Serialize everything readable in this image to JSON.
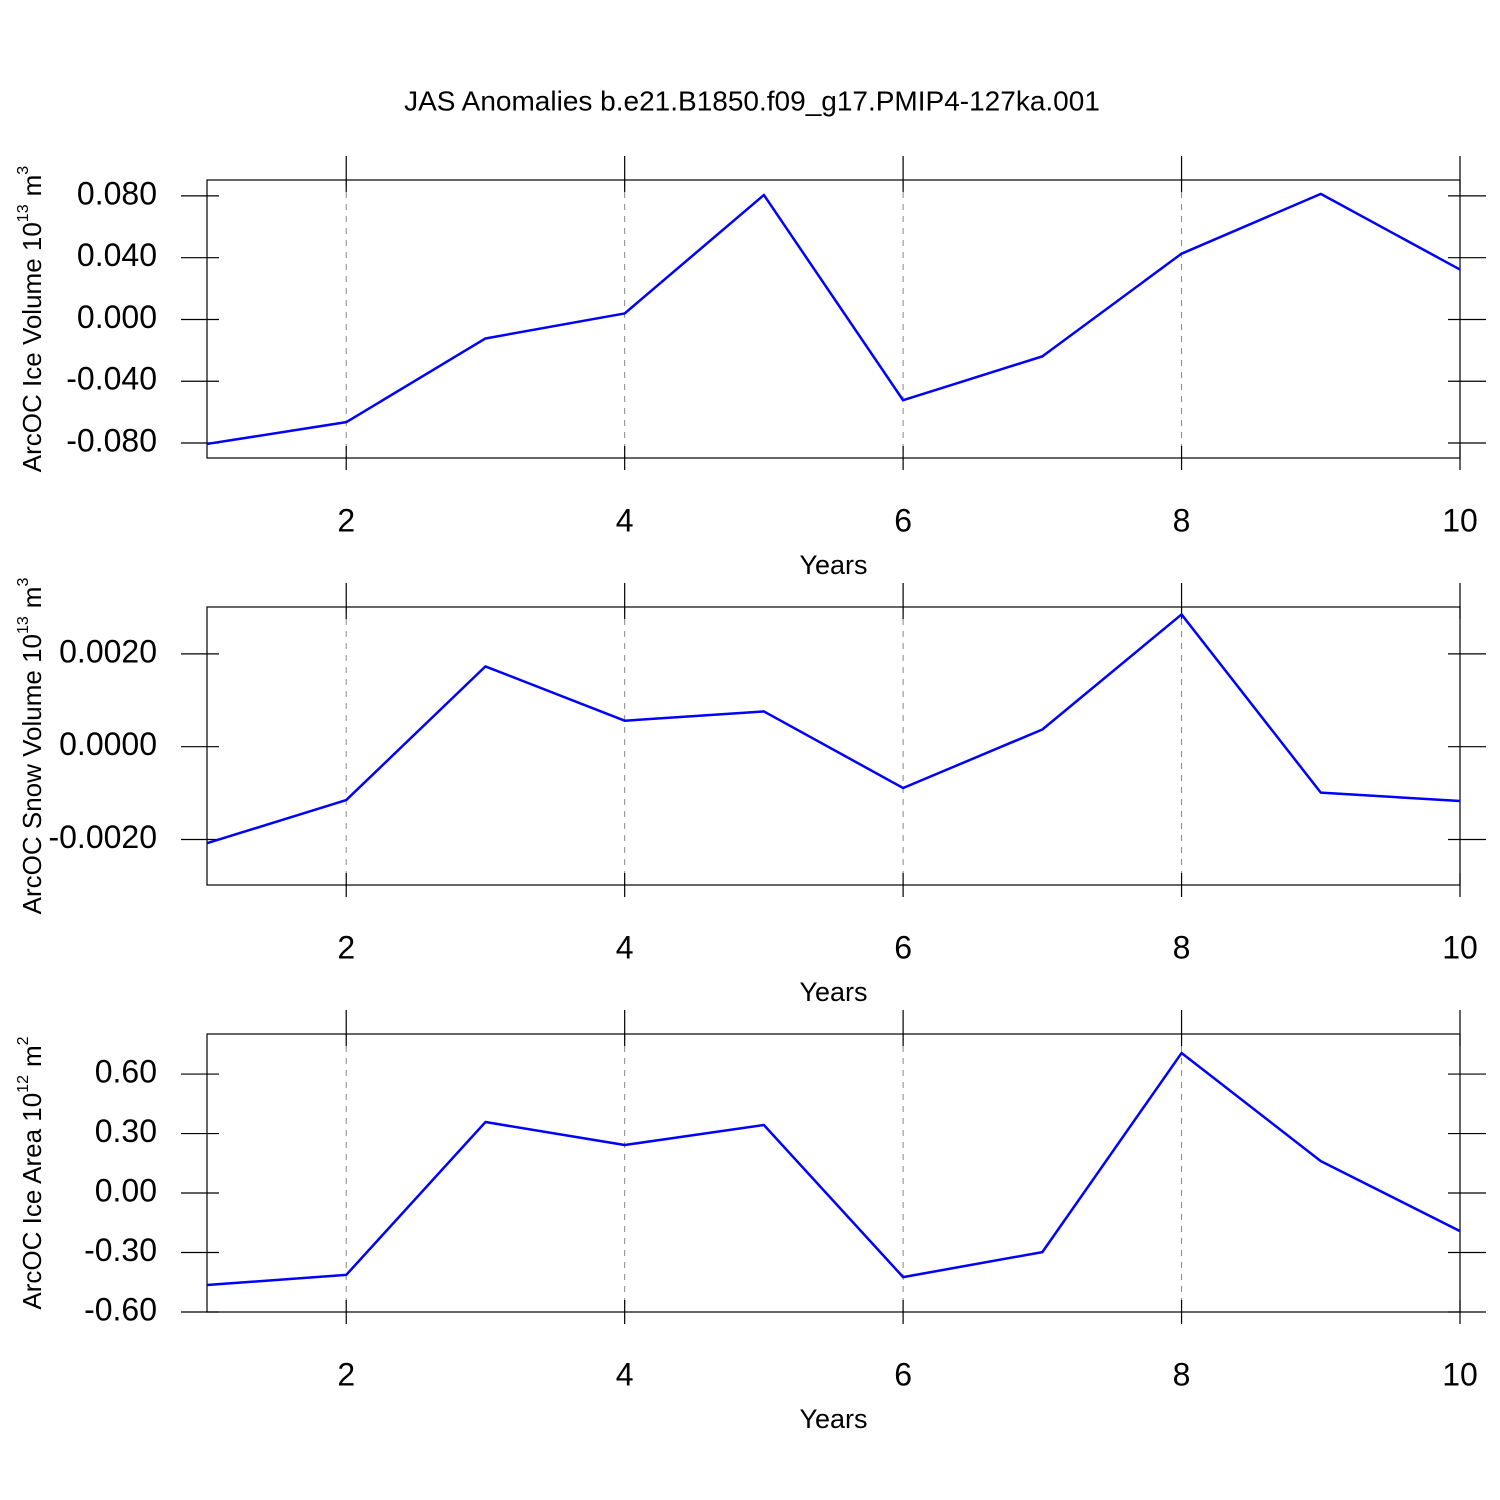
{
  "chart_data": [
    {
      "type": "line",
      "title": "JAS Anomalies b.e21.B1850.f09_g17.PMIP4-127ka.001",
      "x": [
        1,
        2,
        3,
        4,
        5,
        6,
        7,
        8,
        9,
        10
      ],
      "series": [
        {
          "color": "#0000ff",
          "values": [
            -0.0806,
            -0.0665,
            -0.0123,
            0.0039,
            0.0806,
            -0.0523,
            -0.0239,
            0.0426,
            0.0813,
            0.0323
          ]
        }
      ],
      "xlim": [
        1,
        10
      ],
      "xticks": [
        2,
        4,
        6,
        8,
        10
      ],
      "ylim": [
        -0.0897,
        0.0903
      ],
      "yticks": [
        {
          "value": -0.08,
          "label": "-0.080"
        },
        {
          "value": -0.04,
          "label": "-0.040"
        },
        {
          "value": 0,
          "label": "0.000"
        },
        {
          "value": 0.04,
          "label": "0.040"
        },
        {
          "value": 0.08,
          "label": "0.080"
        }
      ],
      "xlabel": "Years",
      "ylabel": "ArcOC Ice Volume 10",
      "ylabel_exponent": "13",
      "ylabel_unit": "m",
      "ylabel_unit_exponent": "3",
      "grid": true
    },
    {
      "type": "line",
      "x": [
        1,
        2,
        3,
        4,
        5,
        6,
        7,
        8,
        9,
        10
      ],
      "series": [
        {
          "color": "#0000ff",
          "values": [
            -0.00208,
            -0.00115,
            0.00173,
            0.00056,
            0.00076,
            -0.00089,
            0.00037,
            0.00285,
            -0.00099,
            -0.00117
          ]
        }
      ],
      "xlim": [
        1,
        10
      ],
      "xticks": [
        2,
        4,
        6,
        8,
        10
      ],
      "ylim": [
        -0.00298,
        0.00301
      ],
      "yticks": [
        {
          "value": -0.002,
          "label": "-0.0020"
        },
        {
          "value": 0,
          "label": "0.0000"
        },
        {
          "value": 0.002,
          "label": "0.0020"
        }
      ],
      "xlabel": "Years",
      "ylabel": "ArcOC Snow Volume 10",
      "ylabel_exponent": "13",
      "ylabel_unit": "m",
      "ylabel_unit_exponent": "3",
      "grid": true
    },
    {
      "type": "line",
      "x": [
        1,
        2,
        3,
        4,
        5,
        6,
        7,
        8,
        9,
        10
      ],
      "series": [
        {
          "color": "#0000ff",
          "values": [
            -0.464,
            -0.413,
            0.358,
            0.242,
            0.343,
            -0.424,
            -0.298,
            0.706,
            0.161,
            -0.192
          ]
        }
      ],
      "xlim": [
        1,
        10
      ],
      "xticks": [
        2,
        4,
        6,
        8,
        10
      ],
      "ylim": [
        -0.6,
        0.802
      ],
      "yticks": [
        {
          "value": -0.6,
          "label": "-0.60"
        },
        {
          "value": -0.3,
          "label": "-0.30"
        },
        {
          "value": 0,
          "label": "0.00"
        },
        {
          "value": 0.3,
          "label": "0.30"
        },
        {
          "value": 0.6,
          "label": "0.60"
        }
      ],
      "xlabel": "Years",
      "ylabel": "ArcOC Ice Area 10",
      "ylabel_exponent": "12",
      "ylabel_unit": "m",
      "ylabel_unit_exponent": "2",
      "grid": true
    }
  ]
}
